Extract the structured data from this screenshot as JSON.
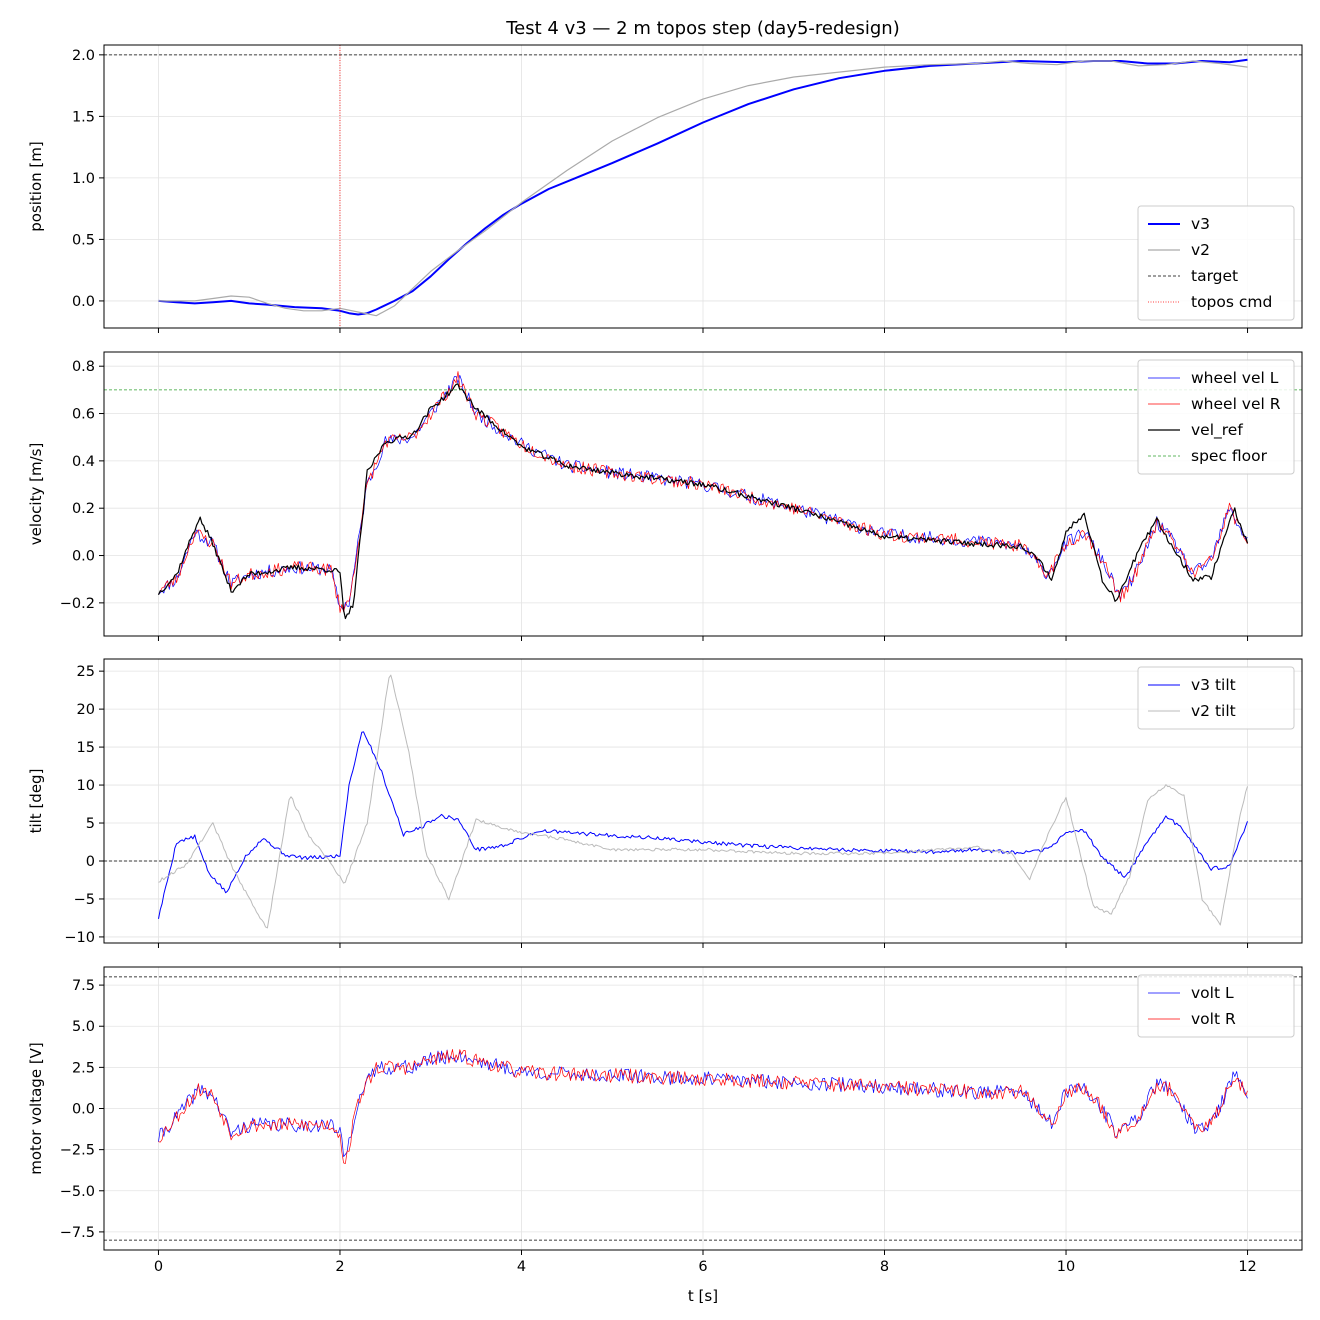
{
  "figure": {
    "title": "Test 4 v3 — 2 m topos step (day5-redesign)",
    "xlabel": "t [s]"
  },
  "chart_data": [
    {
      "type": "line",
      "ylabel": "position [m]",
      "xlim": [
        -0.6,
        12.6
      ],
      "ylim": [
        -0.22,
        2.08
      ],
      "xticks": [
        0,
        2,
        4,
        6,
        8,
        10,
        12
      ],
      "yticks": [
        0.0,
        0.5,
        1.0,
        1.5,
        2.0
      ],
      "grid": true,
      "legend": "bottom-right",
      "series": [
        {
          "name": "v3",
          "color": "#0000ff",
          "width": 2,
          "dash": "",
          "x": [
            0,
            0.2,
            0.4,
            0.6,
            0.8,
            1.0,
            1.2,
            1.5,
            1.8,
            2.0,
            2.1,
            2.2,
            2.3,
            2.4,
            2.6,
            2.8,
            3.0,
            3.2,
            3.4,
            3.6,
            3.8,
            4.0,
            4.3,
            4.6,
            5.0,
            5.5,
            6.0,
            6.5,
            7.0,
            7.5,
            8.0,
            8.5,
            9.0,
            9.5,
            10.0,
            10.3,
            10.6,
            10.9,
            11.2,
            11.5,
            11.8,
            12.0
          ],
          "y": [
            0.0,
            -0.01,
            -0.02,
            -0.01,
            0.0,
            -0.02,
            -0.03,
            -0.05,
            -0.06,
            -0.08,
            -0.1,
            -0.11,
            -0.1,
            -0.07,
            0.0,
            0.08,
            0.2,
            0.34,
            0.47,
            0.59,
            0.7,
            0.79,
            0.91,
            1.0,
            1.12,
            1.28,
            1.45,
            1.6,
            1.72,
            1.81,
            1.87,
            1.91,
            1.93,
            1.95,
            1.94,
            1.95,
            1.95,
            1.93,
            1.93,
            1.95,
            1.94,
            1.96
          ]
        },
        {
          "name": "v2",
          "color": "#aaaaaa",
          "width": 1.2,
          "dash": "",
          "x": [
            0,
            0.2,
            0.4,
            0.6,
            0.8,
            1.0,
            1.2,
            1.4,
            1.6,
            1.8,
            2.0,
            2.2,
            2.4,
            2.6,
            2.8,
            3.0,
            3.3,
            3.6,
            4.0,
            4.5,
            5.0,
            5.5,
            6.0,
            6.5,
            7.0,
            7.5,
            8.0,
            8.5,
            9.0,
            9.3,
            9.6,
            9.9,
            10.2,
            10.5,
            10.8,
            11.1,
            11.4,
            11.7,
            12.0
          ],
          "y": [
            0.0,
            0.0,
            0.0,
            0.02,
            0.04,
            0.03,
            -0.02,
            -0.06,
            -0.08,
            -0.08,
            -0.06,
            -0.09,
            -0.12,
            -0.04,
            0.1,
            0.24,
            0.41,
            0.57,
            0.8,
            1.06,
            1.3,
            1.49,
            1.64,
            1.75,
            1.82,
            1.86,
            1.9,
            1.92,
            1.93,
            1.95,
            1.93,
            1.92,
            1.95,
            1.95,
            1.91,
            1.92,
            1.95,
            1.93,
            1.9
          ]
        },
        {
          "name": "target",
          "color": "#000000",
          "width": 0.8,
          "dash": "3,2",
          "hline": 2.0
        },
        {
          "name": "topos cmd",
          "color": "#ff0000",
          "width": 0.8,
          "dash": "1,1.5",
          "vline": 2.0
        }
      ]
    },
    {
      "type": "line",
      "ylabel": "velocity [m/s]",
      "xlim": [
        -0.6,
        12.6
      ],
      "ylim": [
        -0.34,
        0.86
      ],
      "xticks": [
        0,
        2,
        4,
        6,
        8,
        10,
        12
      ],
      "yticks": [
        -0.2,
        0.0,
        0.2,
        0.4,
        0.6,
        0.8
      ],
      "grid": true,
      "legend": "top-right",
      "series": [
        {
          "name": "wheel vel L",
          "color": "#0000ff",
          "width": 0.7,
          "dash": "",
          "noise": 0.028,
          "seed": 11,
          "x": [
            0,
            0.2,
            0.4,
            0.6,
            0.8,
            1.0,
            1.5,
            1.9,
            2.0,
            2.1,
            2.3,
            2.5,
            2.8,
            3.0,
            3.3,
            3.5,
            4.0,
            4.5,
            5.0,
            6.0,
            7.0,
            8.0,
            9.0,
            9.5,
            9.8,
            10.0,
            10.2,
            10.4,
            10.6,
            10.8,
            11.0,
            11.2,
            11.4,
            11.6,
            11.8,
            12.0
          ],
          "y": [
            -0.15,
            -0.1,
            0.1,
            0.05,
            -0.12,
            -0.08,
            -0.05,
            -0.06,
            -0.22,
            -0.2,
            0.3,
            0.48,
            0.5,
            0.6,
            0.75,
            0.6,
            0.47,
            0.38,
            0.35,
            0.3,
            0.2,
            0.09,
            0.06,
            0.04,
            -0.08,
            0.05,
            0.1,
            -0.02,
            -0.18,
            -0.05,
            0.14,
            0.05,
            -0.08,
            -0.02,
            0.2,
            0.06
          ]
        },
        {
          "name": "wheel vel R",
          "color": "#ff0000",
          "width": 0.7,
          "dash": "",
          "noise": 0.028,
          "seed": 23,
          "x": [
            0,
            0.2,
            0.4,
            0.6,
            0.8,
            1.0,
            1.5,
            1.9,
            2.0,
            2.1,
            2.3,
            2.5,
            2.8,
            3.0,
            3.3,
            3.5,
            4.0,
            4.5,
            5.0,
            6.0,
            7.0,
            8.0,
            9.0,
            9.5,
            9.8,
            10.0,
            10.2,
            10.4,
            10.6,
            10.8,
            11.0,
            11.2,
            11.4,
            11.6,
            11.8,
            12.0
          ],
          "y": [
            -0.15,
            -0.1,
            0.1,
            0.05,
            -0.12,
            -0.08,
            -0.05,
            -0.06,
            -0.22,
            -0.2,
            0.3,
            0.48,
            0.5,
            0.6,
            0.75,
            0.6,
            0.47,
            0.38,
            0.35,
            0.3,
            0.2,
            0.09,
            0.06,
            0.04,
            -0.08,
            0.05,
            0.1,
            -0.02,
            -0.18,
            -0.05,
            0.14,
            0.05,
            -0.08,
            -0.02,
            0.2,
            0.06
          ]
        },
        {
          "name": "vel_ref",
          "color": "#000000",
          "width": 1.2,
          "dash": "",
          "noise": 0.012,
          "seed": 37,
          "x": [
            0,
            0.2,
            0.45,
            0.6,
            0.8,
            1.0,
            1.5,
            1.9,
            2.0,
            2.05,
            2.15,
            2.3,
            2.5,
            2.8,
            3.0,
            3.3,
            3.5,
            4.0,
            4.5,
            5.0,
            6.0,
            7.0,
            8.0,
            9.0,
            9.5,
            9.7,
            9.85,
            10.0,
            10.2,
            10.4,
            10.55,
            10.8,
            11.0,
            11.2,
            11.4,
            11.6,
            11.85,
            12.0
          ],
          "y": [
            -0.16,
            -0.08,
            0.16,
            0.05,
            -0.15,
            -0.08,
            -0.05,
            -0.06,
            -0.07,
            -0.28,
            -0.2,
            0.35,
            0.48,
            0.51,
            0.62,
            0.72,
            0.62,
            0.46,
            0.38,
            0.35,
            0.3,
            0.2,
            0.08,
            0.05,
            0.04,
            -0.02,
            -0.1,
            0.1,
            0.18,
            -0.1,
            -0.19,
            0.02,
            0.15,
            0.02,
            -0.1,
            -0.09,
            0.2,
            0.05
          ]
        },
        {
          "name": "spec floor",
          "color": "#2ca02c",
          "width": 0.8,
          "dash": "3,2",
          "hline": 0.7
        }
      ]
    },
    {
      "type": "line",
      "ylabel": "tilt [deg]",
      "xlim": [
        -0.6,
        12.6
      ],
      "ylim": [
        -10.8,
        26.6
      ],
      "xticks": [
        0,
        2,
        4,
        6,
        8,
        10,
        12
      ],
      "yticks": [
        -10,
        -5,
        0,
        5,
        10,
        15,
        20,
        25
      ],
      "grid": true,
      "legend": "top-right",
      "series": [
        {
          "name": "v3 tilt",
          "color": "#0000ff",
          "width": 1,
          "dash": "",
          "noise": 0.25,
          "seed": 5,
          "x": [
            0,
            0.2,
            0.4,
            0.55,
            0.75,
            0.95,
            1.15,
            1.4,
            1.6,
            1.8,
            2.0,
            2.1,
            2.25,
            2.45,
            2.7,
            2.9,
            3.1,
            3.3,
            3.5,
            3.8,
            4.2,
            4.8,
            5.5,
            6.5,
            7.5,
            8.5,
            9.0,
            9.5,
            9.8,
            10.0,
            10.2,
            10.4,
            10.65,
            10.9,
            11.1,
            11.3,
            11.6,
            11.8,
            12.0
          ],
          "y": [
            -7.5,
            2.5,
            3.2,
            -1.5,
            -4.2,
            0.5,
            3.0,
            0.8,
            0.4,
            0.5,
            0.7,
            10.0,
            17.4,
            12.0,
            3.5,
            4.5,
            6.0,
            5.5,
            1.5,
            2.0,
            4.0,
            3.5,
            3.0,
            2.0,
            1.5,
            1.2,
            1.5,
            1.0,
            1.5,
            3.8,
            4.0,
            0.5,
            -2.2,
            2.5,
            6.0,
            4.0,
            -1.0,
            -0.8,
            5.2
          ]
        },
        {
          "name": "v2 tilt",
          "color": "#bbbbbb",
          "width": 1,
          "dash": "",
          "noise": 0.2,
          "seed": 9,
          "x": [
            0,
            0.3,
            0.6,
            0.8,
            1.0,
            1.2,
            1.45,
            1.65,
            1.85,
            2.05,
            2.3,
            2.55,
            2.75,
            2.95,
            3.2,
            3.5,
            3.9,
            4.4,
            5.0,
            6.0,
            7.0,
            8.0,
            9.0,
            9.4,
            9.6,
            9.8,
            10.0,
            10.3,
            10.5,
            10.7,
            10.9,
            11.1,
            11.3,
            11.5,
            11.7,
            11.9,
            12.0
          ],
          "y": [
            -2.7,
            -0.5,
            5.0,
            -0.5,
            -5.0,
            -9.0,
            8.8,
            3.5,
            0.5,
            -3.0,
            5.0,
            25.0,
            15.0,
            1.0,
            -5.0,
            5.5,
            4.0,
            3.0,
            1.5,
            1.5,
            1.0,
            1.0,
            1.8,
            1.0,
            -2.5,
            3.5,
            8.5,
            -6.0,
            -7.0,
            -2.0,
            8.0,
            10.0,
            8.5,
            -5.0,
            -8.5,
            5.0,
            10.0
          ]
        },
        {
          "name": "",
          "color": "#000000",
          "width": 0.8,
          "dash": "3,2",
          "hline": 0
        }
      ]
    },
    {
      "type": "line",
      "ylabel": "motor voltage [V]",
      "xlim": [
        -0.6,
        12.6
      ],
      "ylim": [
        -8.6,
        8.6
      ],
      "xticks": [
        0,
        2,
        4,
        6,
        8,
        10,
        12
      ],
      "yticks": [
        -7.5,
        -5.0,
        -2.5,
        0.0,
        2.5,
        5.0,
        7.5
      ],
      "grid": true,
      "legend": "top-right",
      "series": [
        {
          "name": "volt L",
          "color": "#0000ff",
          "width": 0.7,
          "dash": "",
          "noise": 0.45,
          "seed": 41,
          "x": [
            0,
            0.2,
            0.45,
            0.6,
            0.8,
            1.0,
            1.5,
            1.9,
            2.0,
            2.05,
            2.2,
            2.4,
            2.8,
            3.0,
            3.3,
            3.6,
            4.0,
            5.0,
            6.0,
            7.0,
            8.0,
            9.0,
            9.5,
            9.7,
            9.85,
            10.0,
            10.2,
            10.4,
            10.55,
            10.8,
            11.0,
            11.2,
            11.4,
            11.6,
            11.85,
            12.0
          ],
          "y": [
            -1.8,
            -0.5,
            1.2,
            0.8,
            -1.5,
            -1.0,
            -1.0,
            -1.0,
            -1.5,
            -3.2,
            0.5,
            2.5,
            2.5,
            3.0,
            3.2,
            2.8,
            2.2,
            2.0,
            1.8,
            1.6,
            1.3,
            1.0,
            1.0,
            0.0,
            -1.0,
            1.0,
            1.2,
            0.0,
            -1.5,
            -0.5,
            1.5,
            1.0,
            -1.2,
            -1.0,
            2.0,
            1.0
          ]
        },
        {
          "name": "volt R",
          "color": "#ff0000",
          "width": 0.7,
          "dash": "",
          "noise": 0.45,
          "seed": 53,
          "x": [
            0,
            0.2,
            0.45,
            0.6,
            0.8,
            1.0,
            1.5,
            1.9,
            2.0,
            2.05,
            2.2,
            2.4,
            2.8,
            3.0,
            3.3,
            3.6,
            4.0,
            5.0,
            6.0,
            7.0,
            8.0,
            9.0,
            9.5,
            9.7,
            9.85,
            10.0,
            10.2,
            10.4,
            10.55,
            10.8,
            11.0,
            11.2,
            11.4,
            11.6,
            11.85,
            12.0
          ],
          "y": [
            -1.8,
            -0.5,
            1.2,
            0.8,
            -1.5,
            -1.0,
            -1.0,
            -1.0,
            -1.5,
            -3.6,
            0.5,
            2.5,
            2.5,
            3.0,
            3.2,
            2.8,
            2.2,
            2.0,
            1.8,
            1.6,
            1.3,
            1.0,
            1.0,
            0.0,
            -1.0,
            1.0,
            1.2,
            0.0,
            -1.5,
            -0.5,
            1.5,
            1.0,
            -1.2,
            -1.0,
            2.0,
            1.0
          ]
        },
        {
          "name": "",
          "color": "#000000",
          "width": 0.8,
          "dash": "3,2",
          "hline": 8.0
        },
        {
          "name": "",
          "color": "#000000",
          "width": 0.8,
          "dash": "3,2",
          "hline": -8.0
        }
      ]
    }
  ]
}
